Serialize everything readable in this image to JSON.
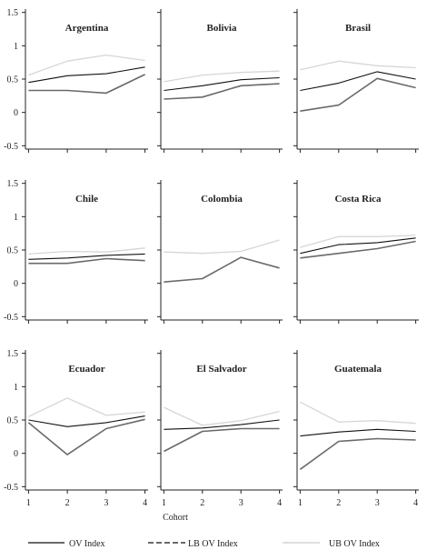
{
  "chart_data": {
    "type": "line",
    "xlabel": "Cohort",
    "x_ticks": [
      1,
      2,
      3,
      4
    ],
    "y_ticks": [
      -0.5,
      0,
      0.5,
      1,
      1.5
    ],
    "y_tick_labels": [
      "-0.5",
      "0",
      "0.5",
      "1",
      "1.5"
    ],
    "ylim": [
      -0.55,
      1.55
    ],
    "legend": [
      {
        "label": "OV Index",
        "color": "#111111",
        "style": "solid"
      },
      {
        "label": "LB OV Index",
        "color": "#111111",
        "style": "dashed"
      },
      {
        "label": "UB OV Index",
        "color": "#cccccc",
        "style": "solid"
      }
    ],
    "series_styles": {
      "ub": {
        "color": "#d6d6d6",
        "width": 1.3
      },
      "ov": {
        "color": "#111111",
        "width": 1.1
      },
      "lb": {
        "color": "#6a6a6a",
        "width": 1.6
      }
    },
    "panels": [
      {
        "title": "Argentina",
        "x": [
          1,
          2,
          3,
          4
        ],
        "ov": [
          0.45,
          0.55,
          0.58,
          0.68
        ],
        "lb": [
          0.33,
          0.33,
          0.29,
          0.57
        ],
        "ub": [
          0.56,
          0.77,
          0.86,
          0.78
        ]
      },
      {
        "title": "Bolivia",
        "x": [
          1,
          2,
          3,
          4
        ],
        "ov": [
          0.33,
          0.4,
          0.49,
          0.52
        ],
        "lb": [
          0.2,
          0.23,
          0.4,
          0.43
        ],
        "ub": [
          0.46,
          0.56,
          0.6,
          0.62
        ]
      },
      {
        "title": "Brasil",
        "x": [
          1,
          2,
          3,
          4
        ],
        "ov": [
          0.33,
          0.44,
          0.61,
          0.5
        ],
        "lb": [
          0.02,
          0.11,
          0.51,
          0.37
        ],
        "ub": [
          0.64,
          0.77,
          0.7,
          0.67
        ]
      },
      {
        "title": "Chile",
        "x": [
          1,
          2,
          3,
          4
        ],
        "ov": [
          0.36,
          0.38,
          0.42,
          0.44
        ],
        "lb": [
          0.3,
          0.3,
          0.37,
          0.34
        ],
        "ub": [
          0.44,
          0.48,
          0.47,
          0.53
        ]
      },
      {
        "title": "Colombia",
        "x": [
          1,
          2,
          3,
          4
        ],
        "ov": [
          null,
          null,
          null,
          null
        ],
        "lb": [
          0.02,
          0.07,
          0.39,
          0.23
        ],
        "ub": [
          0.47,
          0.45,
          0.48,
          0.65
        ]
      },
      {
        "title": "Costa Rica",
        "x": [
          1,
          2,
          3,
          4
        ],
        "ov": [
          0.45,
          0.58,
          0.61,
          0.68
        ],
        "lb": [
          0.38,
          0.45,
          0.52,
          0.63
        ],
        "ub": [
          0.54,
          0.7,
          0.7,
          0.72
        ]
      },
      {
        "title": "Ecuador",
        "x": [
          1,
          2,
          3,
          4
        ],
        "ov": [
          0.5,
          0.4,
          0.46,
          0.56
        ],
        "lb": [
          0.46,
          -0.02,
          0.37,
          0.51
        ],
        "ub": [
          0.55,
          0.83,
          0.57,
          0.62
        ]
      },
      {
        "title": "El Salvador",
        "x": [
          1,
          2,
          3,
          4
        ],
        "ov": [
          0.36,
          0.38,
          0.43,
          0.5
        ],
        "lb": [
          0.03,
          0.33,
          0.37,
          0.37
        ],
        "ub": [
          0.69,
          0.42,
          0.49,
          0.63
        ]
      },
      {
        "title": "Guatemala",
        "x": [
          1,
          2,
          3,
          4
        ],
        "ov": [
          0.26,
          0.32,
          0.36,
          0.33
        ],
        "lb": [
          -0.24,
          0.18,
          0.22,
          0.2
        ],
        "ub": [
          0.77,
          0.47,
          0.49,
          0.45
        ]
      }
    ]
  }
}
